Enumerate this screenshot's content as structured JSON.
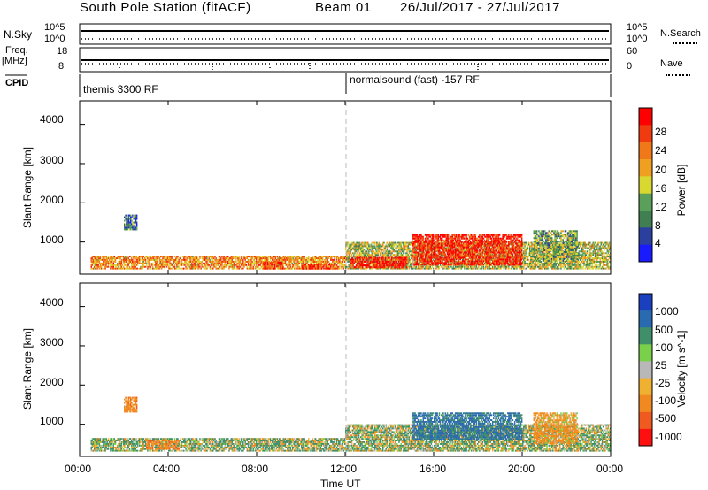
{
  "header": {
    "station": "South Pole Station (fitACF)",
    "beam": "Beam 01",
    "dates": "26/Jul/2017 - 27/Jul/2017"
  },
  "top_panels": {
    "nsky_label": "N.Sky",
    "nsky_tick_top": "10^5",
    "nsky_tick_bottom": "10^0",
    "nsearch_label": "N.Search",
    "nsearch_tick_top": "10^5",
    "nsearch_tick_bottom": "10^0",
    "freq_label": "Freq.",
    "freq_unit": "[MHz]",
    "freq_tick_top": "18",
    "freq_tick_bottom": "8",
    "nave_label": "Nave",
    "nave_tick_top": "60",
    "nave_tick_bottom": "0",
    "cpid_label": "CPID",
    "cpid_left": "themis 3300 RF",
    "cpid_right": "normalsound (fast) -157 RF"
  },
  "power_panel": {
    "ylabel": "Slant Range [km]",
    "yticks": [
      "1000",
      "2000",
      "3000",
      "4000"
    ],
    "colorbar_label": "Power [dB]",
    "colorbar_ticks": [
      "4",
      "8",
      "12",
      "16",
      "20",
      "24",
      "28"
    ],
    "colors": [
      "#1a1aff",
      "#2a3f9e",
      "#3f7f52",
      "#5aa05a",
      "#d8d830",
      "#f0a020",
      "#f07818",
      "#f03a10",
      "#ff0000"
    ]
  },
  "velocity_panel": {
    "ylabel": "Slant Range [km]",
    "yticks": [
      "1000",
      "2000",
      "3000",
      "4000"
    ],
    "colorbar_label": "Velocity [m s^-1]",
    "colorbar_ticks": [
      "1000",
      "500",
      "100",
      "25",
      "-25",
      "-100",
      "-500",
      "-1000"
    ],
    "colors": [
      "#1a3fbf",
      "#2a6ab0",
      "#3f8f6a",
      "#7ad04a",
      "#b8b8b8",
      "#f0b030",
      "#f08a20",
      "#f05a20",
      "#ff1010"
    ]
  },
  "xaxis": {
    "ticks": [
      "00:00",
      "04:00",
      "08:00",
      "12:00",
      "16:00",
      "20:00",
      "00:00"
    ],
    "label": "Time UT"
  },
  "chart_data": [
    {
      "type": "heatmap",
      "title": "South Pole Station (fitACF) Beam 01 26/Jul/2017 - 27/Jul/2017",
      "xlabel": "Time UT",
      "ylabel": "Slant Range [km]",
      "x_range_hours": [
        0,
        24
      ],
      "ylim": [
        180,
        4600
      ],
      "colorbar": {
        "label": "Power [dB]",
        "ticks": [
          4,
          8,
          12,
          16,
          20,
          24,
          28
        ],
        "range": [
          0,
          30
        ]
      },
      "regions": [
        {
          "t0": 0.5,
          "t1": 12,
          "r0": 300,
          "r1": 650,
          "value": 20
        },
        {
          "t0": 2.0,
          "t1": 2.6,
          "r0": 1300,
          "r1": 1700,
          "value": 8
        },
        {
          "t0": 8.3,
          "t1": 9.2,
          "r0": 300,
          "r1": 500,
          "value": 27
        },
        {
          "t0": 10.0,
          "t1": 11.6,
          "r0": 300,
          "r1": 450,
          "value": 26
        },
        {
          "t0": 12.0,
          "t1": 24,
          "r0": 300,
          "r1": 1000,
          "value": 14
        },
        {
          "t0": 12.2,
          "t1": 14.8,
          "r0": 330,
          "r1": 620,
          "value": 28
        },
        {
          "t0": 15.0,
          "t1": 20.0,
          "r0": 400,
          "r1": 1200,
          "value": 27
        },
        {
          "t0": 20.5,
          "t1": 22.5,
          "r0": 500,
          "r1": 1300,
          "value": 12
        }
      ]
    },
    {
      "type": "heatmap",
      "xlabel": "Time UT",
      "ylabel": "Slant Range [km]",
      "x_range_hours": [
        0,
        24
      ],
      "ylim": [
        180,
        4600
      ],
      "colorbar": {
        "label": "Velocity [m s^-1]",
        "ticks": [
          1000,
          500,
          100,
          25,
          -25,
          -100,
          -500,
          -1000
        ]
      },
      "regions": [
        {
          "t0": 0.5,
          "t1": 12,
          "r0": 300,
          "r1": 650,
          "value": 100
        },
        {
          "t0": 2.0,
          "t1": 2.6,
          "r0": 1300,
          "r1": 1700,
          "value": -300
        },
        {
          "t0": 3.0,
          "t1": 4.5,
          "r0": 350,
          "r1": 600,
          "value": -300
        },
        {
          "t0": 12.0,
          "t1": 24,
          "r0": 300,
          "r1": 1000,
          "value": 80
        },
        {
          "t0": 15.0,
          "t1": 20.0,
          "r0": 600,
          "r1": 1300,
          "value": 600
        },
        {
          "t0": 20.5,
          "t1": 22.5,
          "r0": 500,
          "r1": 1300,
          "value": -200
        }
      ]
    }
  ]
}
